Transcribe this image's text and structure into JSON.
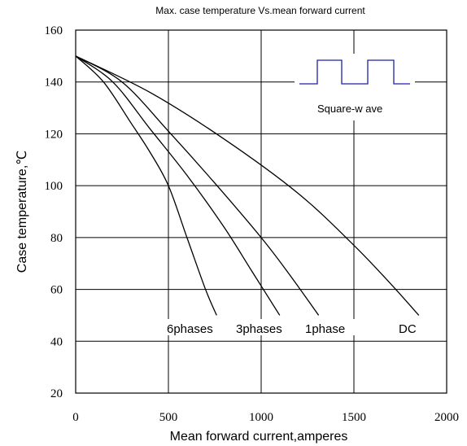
{
  "chart_data": {
    "type": "line",
    "title": "Max. case temperature  Vs.mean  forward  current",
    "xlabel": "Mean forward  current,amperes",
    "ylabel": "Case temperature,℃",
    "xlim": [
      0,
      2000
    ],
    "ylim": [
      20,
      160
    ],
    "x_ticks": [
      0,
      500,
      1000,
      1500,
      2000
    ],
    "y_ticks": [
      20,
      40,
      60,
      80,
      100,
      120,
      140,
      160
    ],
    "x_tick_labels": [
      "0",
      "500",
      "1000",
      "1500",
      "2000"
    ],
    "y_tick_labels": [
      "20",
      "40",
      "60",
      "80",
      "100",
      "120",
      "140",
      "160"
    ],
    "grid": true,
    "series": [
      {
        "name": "6phases",
        "points": [
          [
            0,
            150
          ],
          [
            150,
            140
          ],
          [
            300,
            124
          ],
          [
            400,
            113
          ],
          [
            500,
            100
          ],
          [
            600,
            80
          ],
          [
            700,
            60
          ],
          [
            760,
            50
          ]
        ]
      },
      {
        "name": "3phases",
        "points": [
          [
            0,
            150
          ],
          [
            200,
            140
          ],
          [
            400,
            122
          ],
          [
            600,
            104
          ],
          [
            800,
            84
          ],
          [
            950,
            67
          ],
          [
            1100,
            50
          ]
        ]
      },
      {
        "name": "1phase",
        "points": [
          [
            0,
            150
          ],
          [
            250,
            140
          ],
          [
            500,
            121
          ],
          [
            750,
            101
          ],
          [
            1000,
            80
          ],
          [
            1150,
            66
          ],
          [
            1310,
            50
          ]
        ]
      },
      {
        "name": "DC",
        "points": [
          [
            0,
            150
          ],
          [
            400,
            136
          ],
          [
            800,
            118
          ],
          [
            1200,
            97
          ],
          [
            1500,
            77
          ],
          [
            1700,
            62
          ],
          [
            1850,
            50
          ]
        ]
      }
    ],
    "series_labels": [
      "6phases",
      "3phases",
      "1phase",
      "DC"
    ],
    "inset": {
      "label": "Square-w ave",
      "waveform": "square-wave"
    },
    "line_color": "#000000",
    "inset_color": "#1f1fa8"
  }
}
